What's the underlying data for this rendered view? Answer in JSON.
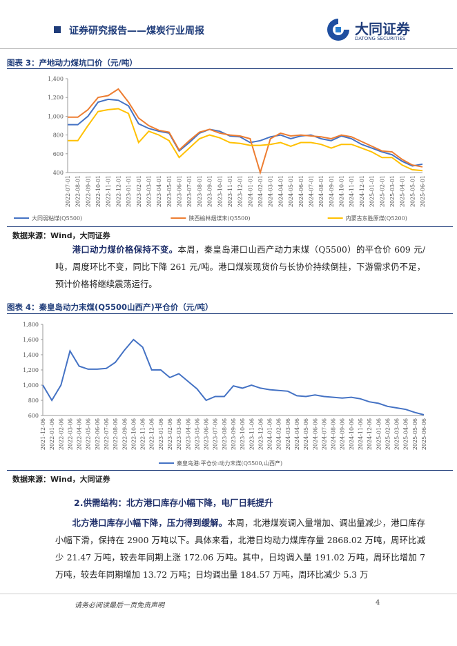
{
  "header": {
    "title": "证券研究报告——煤炭行业周报",
    "logo_name": "大同证券",
    "logo_en": "DATONG SECURITIES"
  },
  "figures": [
    {
      "label": "图表 3：产地动力煤坑口价（元/吨）",
      "source": "数据来源：Wind，大同证券"
    },
    {
      "label": "图表 4：秦皇岛动力末煤(Q5500山西产)平仓价（元/吨）",
      "source": "数据来源：Wind，大同证券"
    }
  ],
  "paragraphs": [
    {
      "lead": "港口动力煤价格保持不变。",
      "text": "本周，秦皇岛港口山西产动力末煤（Q5500）的平仓价 609 元/吨，周度环比不变，同比下降 261 元/吨。港口煤炭现货价与长协价持续倒挂，下游需求仍不足，预计价格将继续震荡运行。"
    },
    {
      "lead": "北方港口库存小幅下降，压力得到缓解。",
      "text": "本周，北港煤炭调入量增加、调出量减少，港口库存小幅下滑，保持在 2900 万吨以下。具体来看，北港日均动力煤库存量 2868.02 万吨，周环比减少 21.47 万吨，较去年同期上涨 172.06 万吨。其中，日均调入量 191.02 万吨，周环比增加 7 万吨，较去年同期增加 13.72 万吨；日均调出量 184.57 万吨，周环比减少 5.3 万"
    }
  ],
  "section": "2.供需结构：北方港口库存小幅下降，电厂日耗提升",
  "footer": {
    "note": "请务必阅读最后一页免责声明",
    "page": "4"
  },
  "chart_data": [
    {
      "type": "line",
      "categories": [
        "2022-07-01",
        "2022-08-01",
        "2022-09-01",
        "2022-10-01",
        "2022-11-01",
        "2022-12-01",
        "2023-01-01",
        "2023-02-01",
        "2023-03-01",
        "2023-04-01",
        "2023-05-01",
        "2023-06-01",
        "2023-07-01",
        "2023-08-01",
        "2023-09-01",
        "2023-10-01",
        "2023-11-01",
        "2023-12-01",
        "2024-01-01",
        "2024-02-01",
        "2024-03-01",
        "2024-04-01",
        "2024-05-01",
        "2024-06-01",
        "2024-07-01",
        "2024-08-01",
        "2024-09-01",
        "2024-10-01",
        "2024-11-01",
        "2024-12-01",
        "2025-01-01",
        "2025-02-01",
        "2025-03-01",
        "2025-04-01",
        "2025-05-01",
        "2025-06-01"
      ],
      "series": [
        {
          "name": "大同弱粘煤(Q5500)",
          "color": "#4472c4",
          "values": [
            910,
            910,
            1000,
            1150,
            1180,
            1170,
            1110,
            920,
            870,
            840,
            820,
            630,
            720,
            820,
            860,
            840,
            790,
            780,
            720,
            740,
            780,
            800,
            760,
            790,
            800,
            760,
            740,
            790,
            760,
            700,
            660,
            620,
            590,
            520,
            470,
            490
          ]
        },
        {
          "name": "陕西榆林烟煤末(Q5500)",
          "color": "#ed7d31",
          "values": [
            990,
            990,
            1070,
            1200,
            1220,
            1290,
            1150,
            980,
            900,
            850,
            830,
            640,
            740,
            830,
            860,
            820,
            800,
            790,
            760,
            400,
            760,
            820,
            790,
            800,
            790,
            780,
            760,
            800,
            780,
            730,
            680,
            630,
            620,
            540,
            480,
            460
          ]
        },
        {
          "name": "内蒙古东胜原煤(Q5200)",
          "color": "#ffc000",
          "values": [
            740,
            740,
            900,
            1050,
            1070,
            1080,
            1030,
            720,
            840,
            800,
            740,
            560,
            660,
            760,
            800,
            770,
            720,
            710,
            690,
            690,
            700,
            720,
            680,
            720,
            720,
            700,
            660,
            700,
            700,
            660,
            620,
            560,
            560,
            480,
            430,
            420
          ]
        }
      ],
      "ylim": [
        400,
        1400
      ],
      "yticks": [
        400,
        600,
        800,
        {
          "value": 1000,
          "label": "1,000"
        },
        {
          "value": 1200,
          "label": "1,200"
        },
        {
          "value": 1400,
          "label": "1,400"
        }
      ]
    },
    {
      "type": "line",
      "categories": [
        "2021-12-06",
        "2022-01-06",
        "2022-02-06",
        "2022-03-06",
        "2022-04-06",
        "2022-05-06",
        "2022-06-06",
        "2022-07-06",
        "2022-08-06",
        "2022-09-06",
        "2022-10-06",
        "2022-11-06",
        "2022-12-06",
        "2023-01-06",
        "2023-02-06",
        "2023-03-06",
        "2023-04-06",
        "2023-05-06",
        "2023-06-06",
        "2023-07-06",
        "2023-08-06",
        "2023-09-06",
        "2023-10-06",
        "2023-11-06",
        "2023-12-06",
        "2024-01-06",
        "2024-02-06",
        "2024-03-06",
        "2024-04-06",
        "2024-05-06",
        "2024-06-06",
        "2024-07-06",
        "2024-08-06",
        "2024-09-06",
        "2024-10-06",
        "2024-11-06",
        "2024-12-06",
        "2025-01-06",
        "2025-02-06",
        "2025-03-06",
        "2025-04-06",
        "2025-05-06",
        "2025-06-06"
      ],
      "series": [
        {
          "name": "秦皇岛港:平仓价:动力末煤(Q5500,山西产)",
          "color": "#4472c4",
          "values": [
            1000,
            800,
            1000,
            1450,
            1250,
            1210,
            1210,
            1220,
            1300,
            1460,
            1600,
            1500,
            1200,
            1200,
            1100,
            1150,
            1050,
            950,
            800,
            850,
            850,
            990,
            960,
            1000,
            960,
            940,
            930,
            920,
            860,
            850,
            870,
            850,
            840,
            830,
            840,
            820,
            780,
            760,
            720,
            700,
            680,
            640,
            609
          ]
        }
      ],
      "ylim": [
        600,
        1800
      ],
      "yticks": [
        600,
        800,
        {
          "value": 1000,
          "label": "1,000"
        },
        {
          "value": 1200,
          "label": "1,200"
        },
        {
          "value": 1400,
          "label": "1,400"
        },
        {
          "value": 1600,
          "label": "1,600"
        },
        {
          "value": 1800,
          "label": "1,800"
        }
      ]
    }
  ]
}
